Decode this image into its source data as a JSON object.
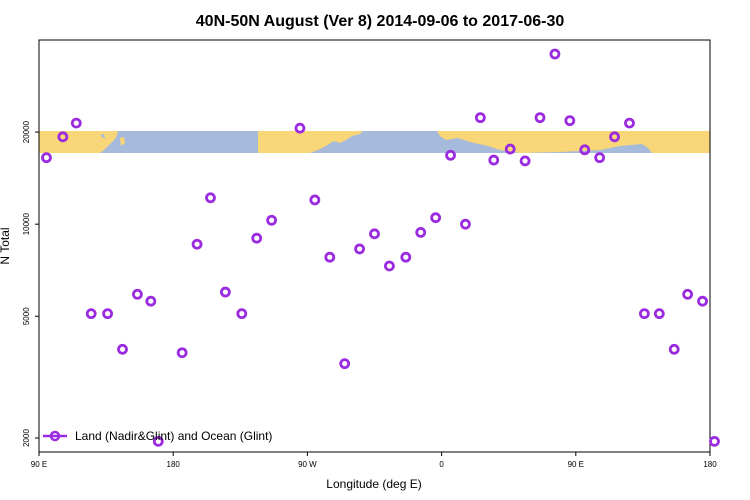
{
  "chart_data": {
    "type": "scatter",
    "title": "40N-50N August (Ver 8)   2014-09-06 to 2017-06-30",
    "xlabel": "Longitude (deg E)",
    "ylabel": "N Total",
    "x_ticks": [
      {
        "value": 90,
        "label": "90 E"
      },
      {
        "value": 180,
        "label": "180"
      },
      {
        "value": 270,
        "label": "90 W"
      },
      {
        "value": 360,
        "label": "0"
      },
      {
        "value": 450,
        "label": "90 E"
      },
      {
        "value": 540,
        "label": "180"
      }
    ],
    "y_ticks": [
      2000,
      5000,
      10000,
      20000
    ],
    "y_scale": "log",
    "xlim": [
      90,
      540
    ],
    "ylim": [
      1800,
      40000
    ],
    "legend": {
      "label": "Land (Nadir&Glint) and Ocean (Glint)",
      "position": "bottom-left"
    },
    "series": [
      {
        "name": "Land (Nadir&Glint) and Ocean (Glint)",
        "color": "#9a2be0",
        "x": [
          95,
          106,
          115,
          125,
          136,
          146,
          156,
          165,
          170,
          186,
          196,
          205,
          215,
          226,
          236,
          246,
          265,
          275,
          285,
          295,
          305,
          315,
          325,
          336,
          346,
          356,
          366,
          376,
          386,
          395,
          406,
          416,
          426,
          436,
          446,
          456,
          466,
          476,
          486,
          496,
          506,
          516,
          525,
          535,
          543
        ],
        "y": [
          16500,
          19300,
          21400,
          5100,
          5100,
          3900,
          5900,
          5600,
          1950,
          3800,
          8600,
          12200,
          6000,
          5100,
          9000,
          10300,
          20600,
          12000,
          7800,
          3500,
          8300,
          9300,
          7300,
          7800,
          9400,
          10500,
          16800,
          10000,
          22300,
          16200,
          17600,
          16100,
          22300,
          36000,
          21800,
          17500,
          16500,
          19300,
          21400,
          5100,
          5100,
          3900,
          5900,
          5600,
          1950
        ]
      }
    ]
  },
  "colors": {
    "marker": "#9a2be0",
    "ocean": "#a6bbdc",
    "land": "#f9d677",
    "frame": "#000000"
  }
}
